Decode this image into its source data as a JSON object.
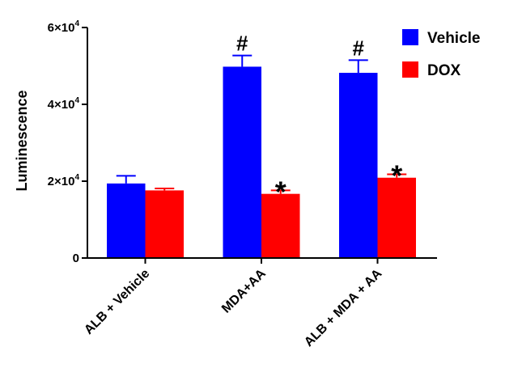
{
  "chart_data": {
    "type": "bar",
    "title": "",
    "xlabel": "",
    "ylabel": "Luminescence",
    "ylim": [
      0,
      60000
    ],
    "y_ticks": [
      {
        "value": 0,
        "mantissa": "0",
        "exponent": ""
      },
      {
        "value": 20000,
        "mantissa": "2×10",
        "exponent": "4"
      },
      {
        "value": 40000,
        "mantissa": "4×10",
        "exponent": "4"
      },
      {
        "value": 60000,
        "mantissa": "6×10",
        "exponent": "4"
      }
    ],
    "categories": [
      "ALB + Vehicle",
      "MDA+AA",
      "ALB + MDA + AA"
    ],
    "series": [
      {
        "name": "Vehicle",
        "color": "#0000ff",
        "values": [
          19400,
          49800,
          48200
        ],
        "errors": [
          2000,
          2900,
          3300
        ]
      },
      {
        "name": "DOX",
        "color": "#ff0000",
        "values": [
          17600,
          16700,
          20900
        ],
        "errors": [
          500,
          900,
          900
        ]
      }
    ],
    "annotations": [
      {
        "category": 1,
        "series": 0,
        "text": "#"
      },
      {
        "category": 2,
        "series": 0,
        "text": "#"
      },
      {
        "category": 1,
        "series": 1,
        "text": "*"
      },
      {
        "category": 2,
        "series": 1,
        "text": "*"
      }
    ],
    "legend": "top-right",
    "grid": false
  }
}
